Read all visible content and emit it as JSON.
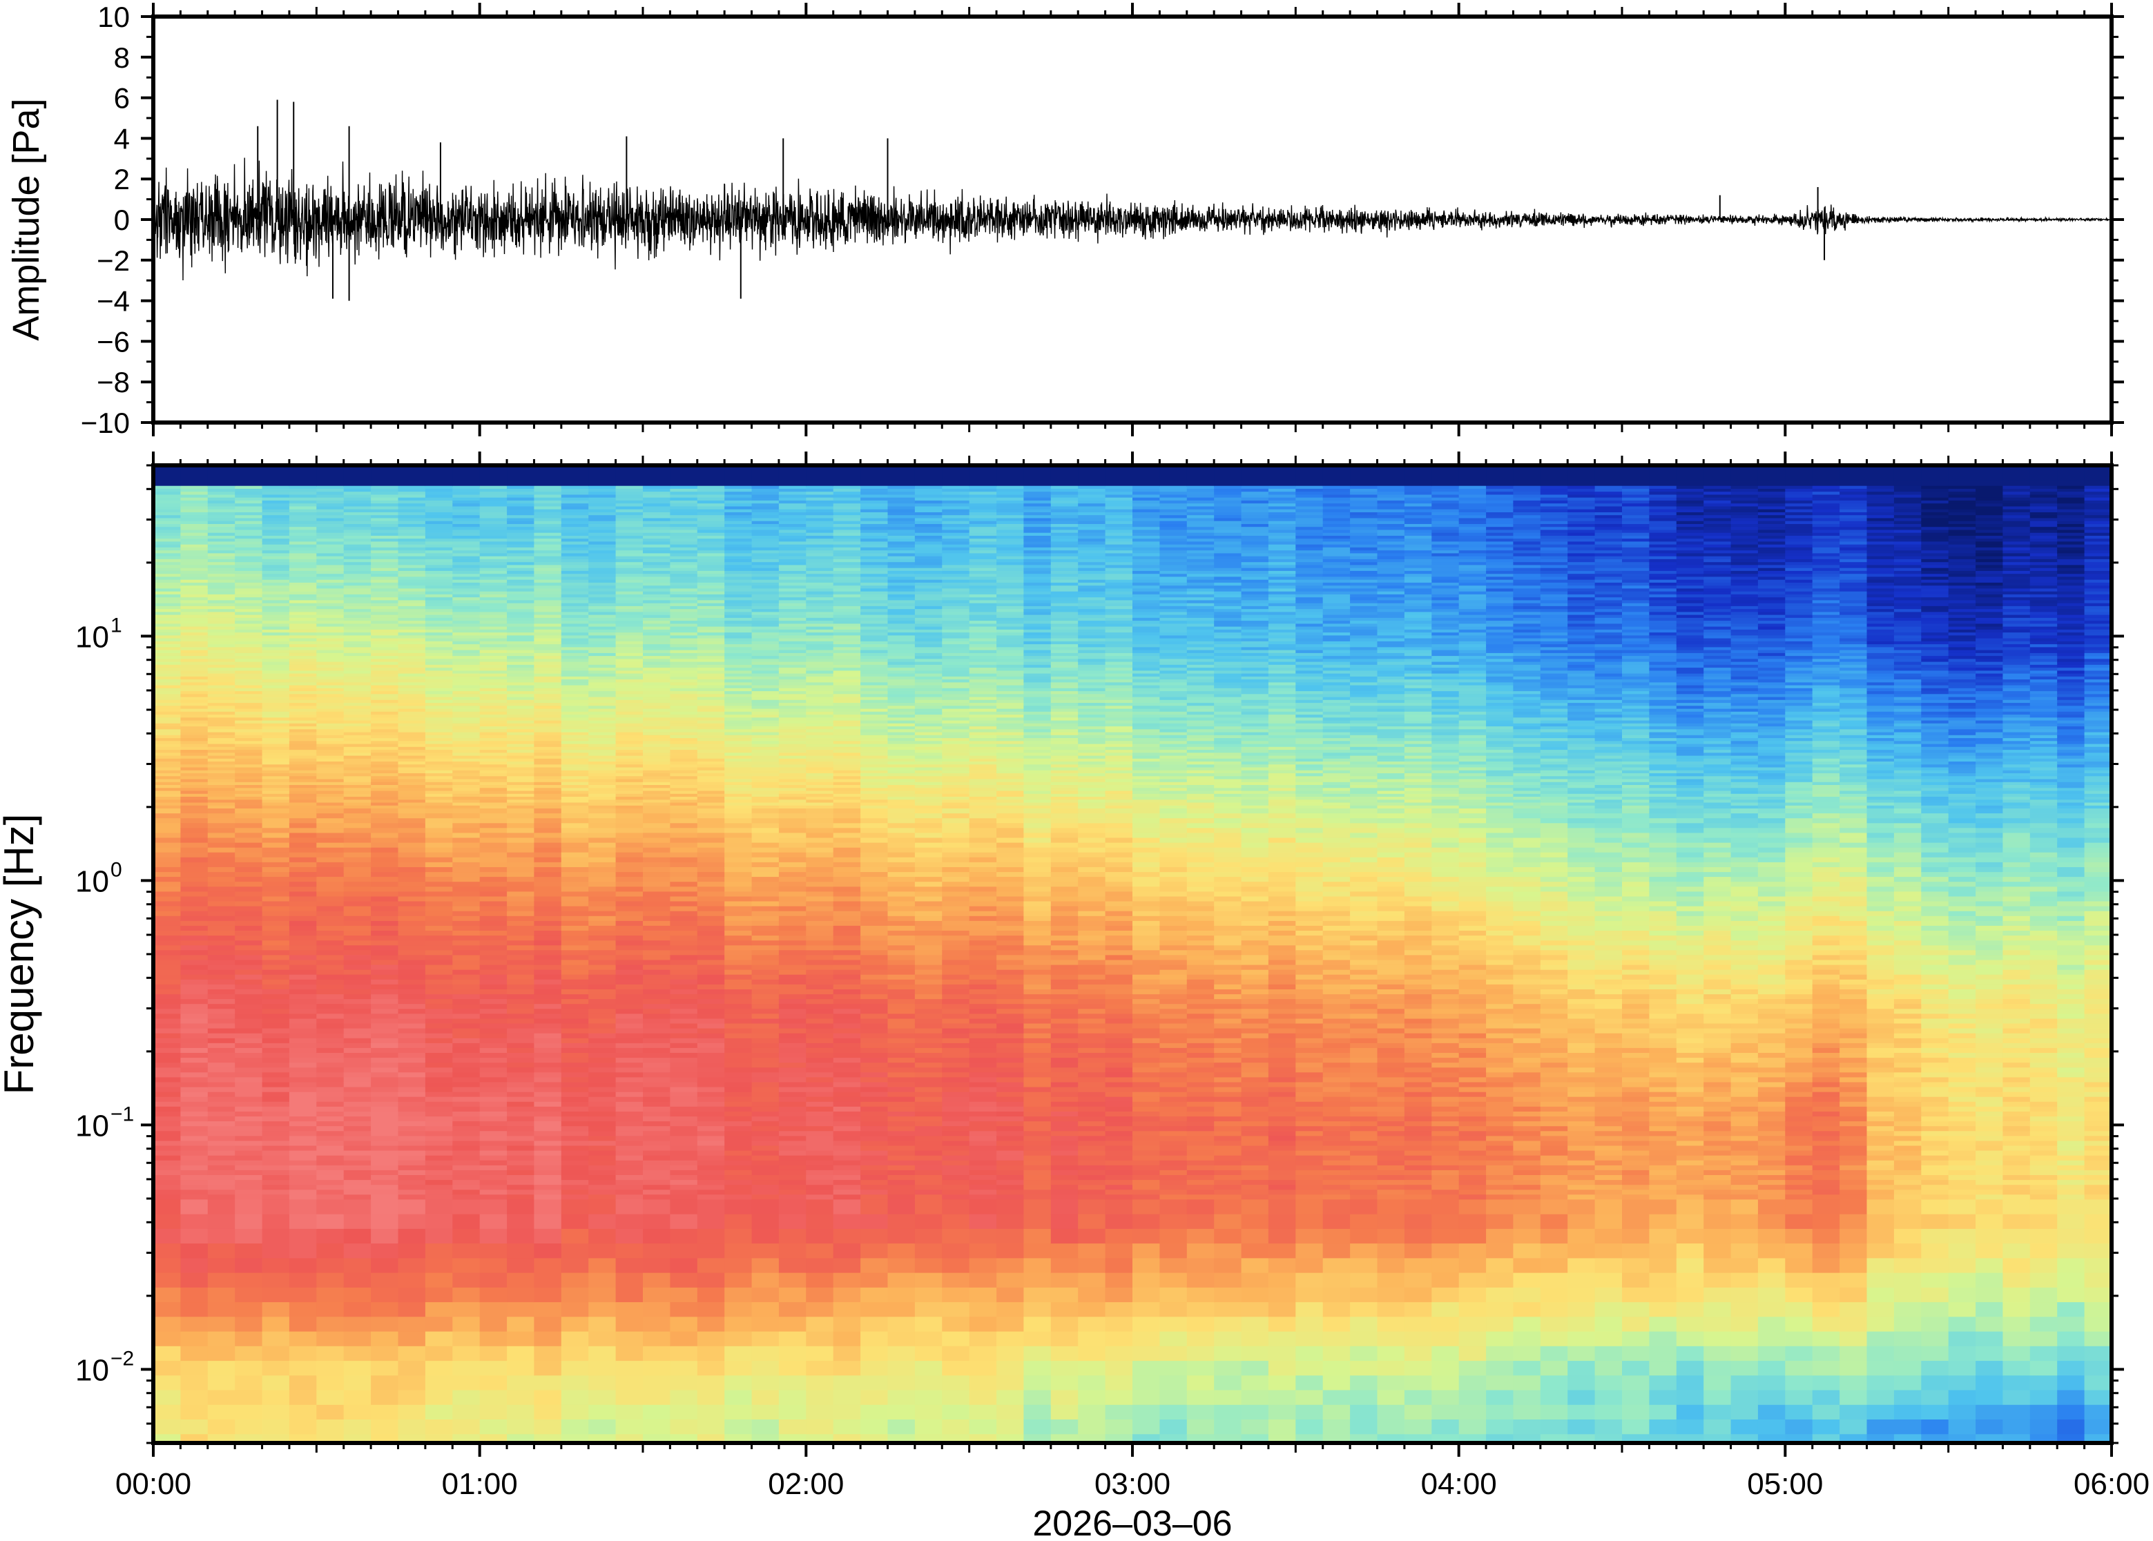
{
  "chart_data": [
    {
      "type": "line",
      "panel": "waveform",
      "ylabel": "Amplitude [Pa]",
      "xlabel": "",
      "ylim": [
        -10,
        10
      ],
      "yticks": [
        10,
        8,
        6,
        4,
        2,
        0,
        -2,
        -4,
        -6,
        -8,
        -10
      ],
      "ytick_labels": [
        "10",
        "8",
        "6",
        "4",
        "2",
        "0",
        "−2",
        "−4",
        "−6",
        "−8",
        "−10"
      ],
      "xlim": [
        "00:00",
        "06:00"
      ],
      "envelope": {
        "x_hours": [
          0.0,
          0.25,
          0.5,
          0.75,
          1.0,
          1.25,
          1.5,
          1.75,
          2.0,
          2.25,
          2.5,
          2.75,
          3.0,
          3.25,
          3.5,
          3.75,
          4.0,
          4.25,
          4.5,
          4.75,
          5.0,
          5.1,
          5.25,
          5.5,
          5.75,
          6.0
        ],
        "amplitude": [
          2.6,
          2.8,
          2.7,
          2.5,
          2.1,
          2.2,
          2.1,
          2.0,
          1.9,
          1.6,
          1.4,
          1.2,
          1.1,
          0.9,
          0.7,
          0.8,
          0.55,
          0.45,
          0.35,
          0.25,
          0.3,
          1.0,
          0.2,
          0.12,
          0.1,
          0.08
        ]
      },
      "peaks": [
        {
          "x_hours": 0.32,
          "y": 4.6
        },
        {
          "x_hours": 0.38,
          "y": 5.9
        },
        {
          "x_hours": 0.43,
          "y": 5.8
        },
        {
          "x_hours": 0.6,
          "y": 4.6
        },
        {
          "x_hours": 0.88,
          "y": 3.8
        },
        {
          "x_hours": 1.45,
          "y": 4.1
        },
        {
          "x_hours": 1.93,
          "y": 4.0
        },
        {
          "x_hours": 2.25,
          "y": 4.0
        },
        {
          "x_hours": 4.8,
          "y": 1.2
        },
        {
          "x_hours": 5.1,
          "y": 1.6
        },
        {
          "x_hours": 0.55,
          "y": -3.9
        },
        {
          "x_hours": 0.6,
          "y": -4.0
        },
        {
          "x_hours": 1.8,
          "y": -3.9
        },
        {
          "x_hours": 5.12,
          "y": -2.0
        }
      ]
    },
    {
      "type": "heatmap",
      "panel": "spectrogram",
      "ylabel": "Frequency [Hz]",
      "yscale": "log",
      "ylim": [
        0.005,
        50
      ],
      "yticks": [
        0.01,
        0.1,
        1,
        10
      ],
      "ytick_bases": [
        "10",
        "10",
        "10",
        "10"
      ],
      "ytick_exponents": [
        "−2",
        "−1",
        "0",
        "1"
      ],
      "colormap": [
        "#08196e",
        "#1530c8",
        "#2a7ff0",
        "#4fc4ee",
        "#8ee8cc",
        "#d7f58f",
        "#fde072",
        "#fcb25a",
        "#f57b4e",
        "#ee5755",
        "#f47a78"
      ],
      "power_grid": {
        "x_hours": [
          0.0,
          0.5,
          1.0,
          1.5,
          2.0,
          2.5,
          3.0,
          3.5,
          4.0,
          4.5,
          4.9,
          5.1,
          5.3,
          5.6,
          6.0
        ],
        "freq_hz": [
          0.006,
          0.01,
          0.02,
          0.04,
          0.1,
          0.3,
          1,
          3,
          10,
          30
        ],
        "relative_power": [
          [
            0.56,
            0.6,
            0.55,
            0.5,
            0.52,
            0.5,
            0.42,
            0.42,
            0.4,
            0.38,
            0.3,
            0.33,
            0.24,
            0.26,
            0.22
          ],
          [
            0.62,
            0.62,
            0.6,
            0.6,
            0.58,
            0.56,
            0.52,
            0.48,
            0.48,
            0.42,
            0.4,
            0.45,
            0.4,
            0.38,
            0.35
          ],
          [
            0.8,
            0.82,
            0.8,
            0.78,
            0.75,
            0.7,
            0.68,
            0.66,
            0.62,
            0.6,
            0.58,
            0.65,
            0.52,
            0.5,
            0.5
          ],
          [
            0.93,
            0.95,
            0.94,
            0.92,
            0.91,
            0.88,
            0.85,
            0.82,
            0.8,
            0.74,
            0.7,
            0.86,
            0.64,
            0.62,
            0.58
          ],
          [
            0.95,
            0.97,
            0.96,
            0.94,
            0.92,
            0.9,
            0.86,
            0.84,
            0.8,
            0.76,
            0.72,
            0.88,
            0.64,
            0.62,
            0.58
          ],
          [
            0.92,
            0.92,
            0.91,
            0.9,
            0.88,
            0.84,
            0.8,
            0.76,
            0.72,
            0.66,
            0.6,
            0.72,
            0.6,
            0.58,
            0.56
          ],
          [
            0.8,
            0.8,
            0.78,
            0.76,
            0.72,
            0.68,
            0.64,
            0.6,
            0.55,
            0.48,
            0.44,
            0.55,
            0.44,
            0.42,
            0.42
          ],
          [
            0.66,
            0.64,
            0.62,
            0.6,
            0.56,
            0.52,
            0.48,
            0.44,
            0.4,
            0.36,
            0.28,
            0.4,
            0.28,
            0.28,
            0.28
          ],
          [
            0.52,
            0.48,
            0.46,
            0.42,
            0.4,
            0.36,
            0.32,
            0.28,
            0.24,
            0.2,
            0.12,
            0.22,
            0.1,
            0.1,
            0.12
          ],
          [
            0.4,
            0.34,
            0.32,
            0.32,
            0.3,
            0.28,
            0.26,
            0.22,
            0.18,
            0.14,
            0.04,
            0.14,
            0.04,
            0.02,
            0.06
          ]
        ]
      },
      "xticks": [
        "00:00",
        "01:00",
        "02:00",
        "03:00",
        "04:00",
        "05:00",
        "06:00"
      ],
      "xlabel": "2026–03–06"
    }
  ]
}
